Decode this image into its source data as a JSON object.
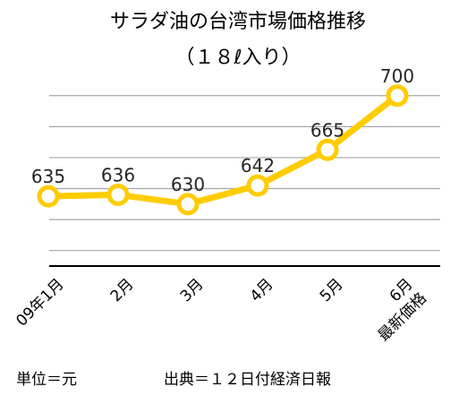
{
  "chart_data": {
    "type": "line",
    "title": "サラダ油の台湾市場価格推移",
    "subtitle": "（１８ℓ入り）",
    "categories": [
      "09年1月",
      "2月",
      "3月",
      "4月",
      "5月",
      "6月\n最新価格"
    ],
    "series": [
      {
        "values": [
          635,
          636,
          630,
          642,
          665,
          700
        ]
      }
    ],
    "data_labels": [
      "635",
      "636",
      "630",
      "642",
      "665",
      "700"
    ],
    "ylim": [
      590,
      712
    ],
    "grid": true,
    "legend": "none",
    "colors": {
      "line": "#FFCC00",
      "marker_fill": "#FFFFFF",
      "grid": "#A6A6A6",
      "axis": "#000000"
    }
  },
  "footer": {
    "unit_note": "単位＝元",
    "source_note": "出典＝１２日付経済日報"
  }
}
